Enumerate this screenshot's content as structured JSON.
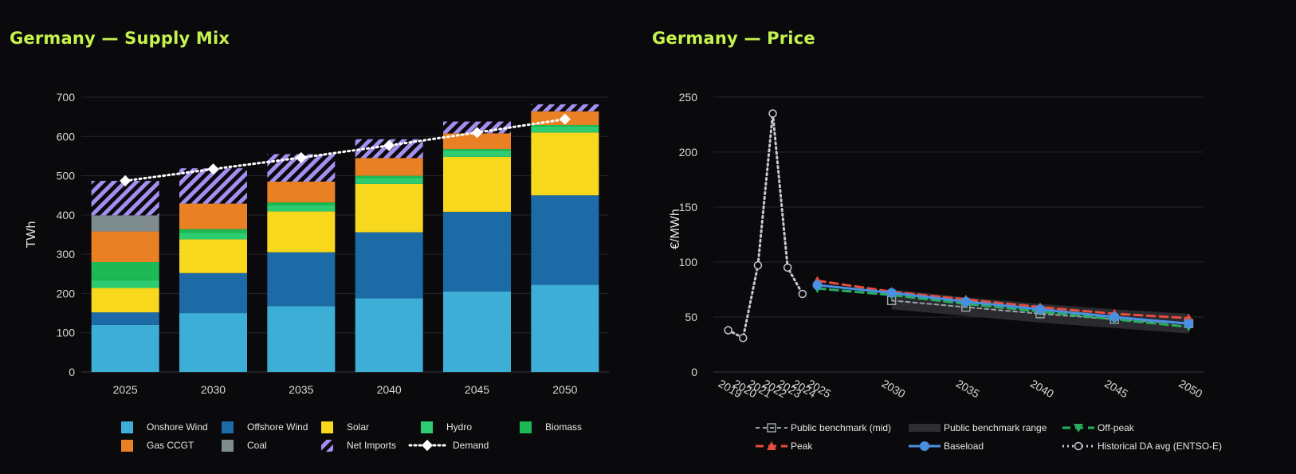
{
  "left_title": "Germany — Supply Mix",
  "right_title": "Germany — Price",
  "colors": {
    "onshore": "#3daed6",
    "offshore": "#1c6aa6",
    "solar": "#f8d81c",
    "hydro": "#2ecc71",
    "biomass": "#1db954",
    "gas": "#ea8024",
    "coal": "#7f8c8d",
    "imports": "#a48ef0",
    "demand": "#ffffff",
    "bench": "#9aa0a8",
    "range": "#2e2e33",
    "offpeak": "#27ae60",
    "peak": "#e74c3c",
    "baseload": "#4a90e2",
    "hist": "#c8c8d0"
  },
  "chart_data": [
    {
      "type": "bar",
      "stacked": true,
      "title": "Germany — Supply Mix",
      "ylabel": "TWh",
      "ylim": [
        0,
        700
      ],
      "yticks": [
        0,
        100,
        200,
        300,
        400,
        500,
        600,
        700
      ],
      "categories": [
        "2025",
        "2030",
        "2035",
        "2040",
        "2045",
        "2050"
      ],
      "series": [
        {
          "name": "Onshore Wind",
          "key": "onshore",
          "values": [
            120,
            150,
            168,
            188,
            205,
            222
          ]
        },
        {
          "name": "Offshore Wind",
          "key": "offshore",
          "values": [
            32,
            102,
            137,
            168,
            203,
            228
          ]
        },
        {
          "name": "Solar",
          "key": "solar",
          "values": [
            62,
            86,
            104,
            123,
            140,
            160
          ]
        },
        {
          "name": "Hydro",
          "key": "hydro",
          "values": [
            20,
            16,
            15,
            15,
            15,
            15
          ]
        },
        {
          "name": "Biomass",
          "key": "biomass",
          "values": [
            46,
            10,
            8,
            6,
            5,
            4
          ]
        },
        {
          "name": "Gas CCGT",
          "key": "gas",
          "values": [
            78,
            65,
            53,
            45,
            40,
            35
          ]
        },
        {
          "name": "Coal",
          "key": "coal",
          "values": [
            41,
            0,
            0,
            0,
            0,
            0
          ]
        },
        {
          "name": "Net Imports",
          "key": "imports",
          "values": [
            88,
            90,
            70,
            48,
            30,
            18
          ]
        }
      ],
      "demand": {
        "name": "Demand",
        "values": [
          487,
          517,
          546,
          577,
          610,
          644
        ]
      },
      "legend": [
        "Onshore Wind",
        "Offshore Wind",
        "Solar",
        "Hydro",
        "Biomass",
        "Gas CCGT",
        "Coal",
        "Net Imports",
        "Demand"
      ],
      "legend_position": "bottom"
    },
    {
      "type": "line",
      "title": "Germany — Price",
      "ylabel": "€/MWh",
      "ylim": [
        0,
        260
      ],
      "yticks": [
        0,
        50,
        100,
        150,
        200,
        250
      ],
      "xticks": [
        "2019",
        "2020",
        "2021",
        "2022",
        "2023",
        "2024",
        "2025",
        "2030",
        "2035",
        "2040",
        "2045",
        "2050"
      ],
      "series": [
        {
          "name": "Public benchmark (mid)",
          "key": "bench",
          "x": [
            2030,
            2035,
            2040,
            2045,
            2050
          ],
          "values": [
            65,
            59,
            53,
            48,
            44
          ]
        },
        {
          "name": "Peak",
          "key": "peak",
          "x": [
            2025,
            2030,
            2035,
            2040,
            2045,
            2050
          ],
          "values": [
            83,
            73,
            66,
            59,
            53,
            49
          ]
        },
        {
          "name": "Off-peak",
          "key": "offpeak",
          "x": [
            2025,
            2030,
            2035,
            2040,
            2045,
            2050
          ],
          "values": [
            76,
            70,
            62,
            55,
            48,
            41
          ]
        },
        {
          "name": "Baseload",
          "key": "baseload",
          "x": [
            2025,
            2030,
            2035,
            2040,
            2045,
            2050
          ],
          "values": [
            79,
            72,
            64,
            57,
            50,
            44
          ]
        },
        {
          "name": "Historical DA avg (ENTSO-E)",
          "key": "hist",
          "x": [
            2019,
            2020,
            2021,
            2022,
            2023,
            2024
          ],
          "values": [
            38,
            31,
            97,
            235,
            95,
            71
          ]
        }
      ],
      "range": {
        "name": "Public benchmark range",
        "x": [
          2030,
          2035,
          2040,
          2045,
          2050
        ],
        "low": [
          57,
          51,
          45,
          40,
          35
        ],
        "high": [
          75,
          68,
          62,
          57,
          53
        ]
      },
      "legend": [
        "Public benchmark (mid)",
        "Public benchmark range",
        "Off-peak",
        "Peak",
        "Baseload",
        "Historical DA avg (ENTSO-E)"
      ],
      "legend_position": "bottom"
    }
  ]
}
